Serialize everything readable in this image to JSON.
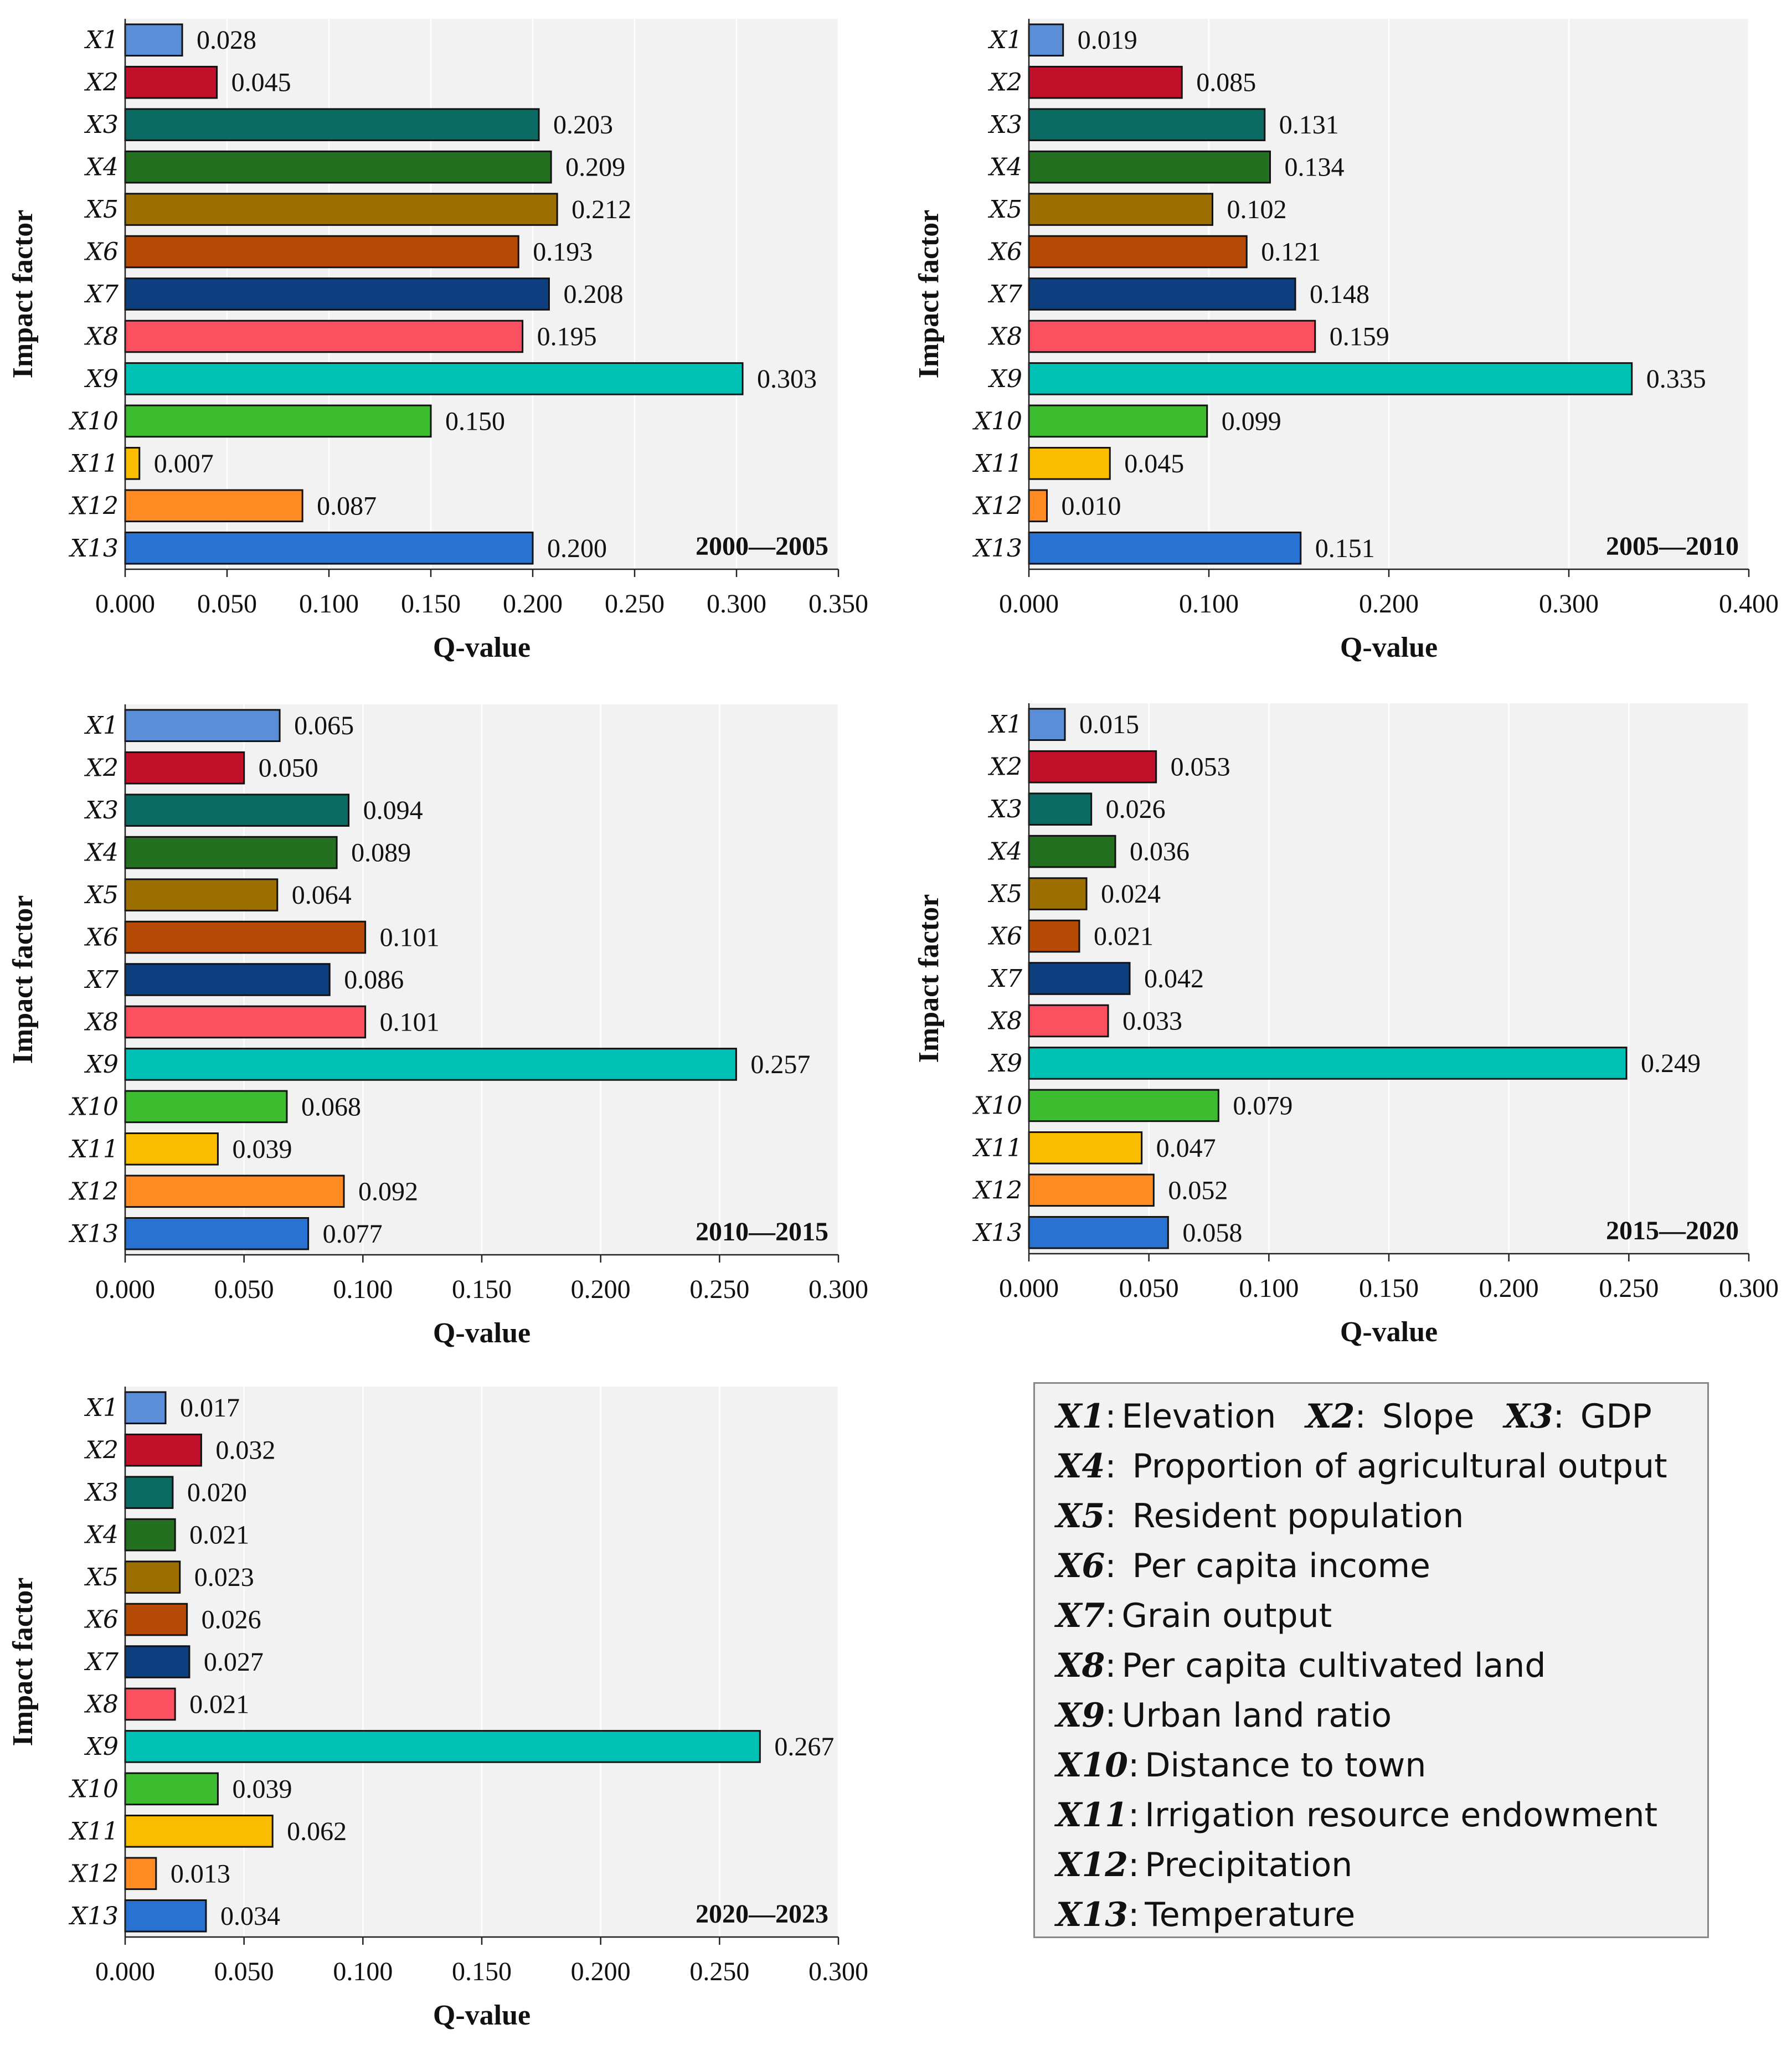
{
  "chart_data": [
    {
      "type": "bar",
      "orientation": "horizontal",
      "title": "2000—2005",
      "xlabel": "Q-value",
      "ylabel": "Impact factor",
      "categories": [
        "X1",
        "X2",
        "X3",
        "X4",
        "X5",
        "X6",
        "X7",
        "X8",
        "X9",
        "X10",
        "X11",
        "X12",
        "X13"
      ],
      "values": [
        0.028,
        0.045,
        0.203,
        0.209,
        0.212,
        0.193,
        0.208,
        0.195,
        0.303,
        0.15,
        0.007,
        0.087,
        0.2
      ],
      "value_labels": [
        "0.028",
        "0.045",
        "0.203",
        "0.209",
        "0.212",
        "0.193",
        "0.208",
        "0.195",
        "0.303",
        "0.150",
        "0.007",
        "0.087",
        "0.200"
      ],
      "xlim": [
        0,
        0.35
      ],
      "xticks": [
        0,
        0.05,
        0.1,
        0.15,
        0.2,
        0.25,
        0.3,
        0.35
      ],
      "xtick_labels": [
        "0.000",
        "0.050",
        "0.100",
        "0.150",
        "0.200",
        "0.250",
        "0.300",
        "0.350"
      ],
      "grid": true
    },
    {
      "type": "bar",
      "orientation": "horizontal",
      "title": "2005—2010",
      "xlabel": "Q-value",
      "ylabel": "Impact factor",
      "categories": [
        "X1",
        "X2",
        "X3",
        "X4",
        "X5",
        "X6",
        "X7",
        "X8",
        "X9",
        "X10",
        "X11",
        "X12",
        "X13"
      ],
      "values": [
        0.019,
        0.085,
        0.131,
        0.134,
        0.102,
        0.121,
        0.148,
        0.159,
        0.335,
        0.099,
        0.045,
        0.01,
        0.151
      ],
      "value_labels": [
        "0.019",
        "0.085",
        "0.131",
        "0.134",
        "0.102",
        "0.121",
        "0.148",
        "0.159",
        "0.335",
        "0.099",
        "0.045",
        "0.010",
        "0.151"
      ],
      "xlim": [
        0,
        0.4
      ],
      "xticks": [
        0,
        0.1,
        0.2,
        0.3,
        0.4
      ],
      "xtick_labels": [
        "0.000",
        "0.100",
        "0.200",
        "0.300",
        "0.400"
      ],
      "grid": true
    },
    {
      "type": "bar",
      "orientation": "horizontal",
      "title": "2010—2015",
      "xlabel": "Q-value",
      "ylabel": "Impact factor",
      "categories": [
        "X1",
        "X2",
        "X3",
        "X4",
        "X5",
        "X6",
        "X7",
        "X8",
        "X9",
        "X10",
        "X11",
        "X12",
        "X13"
      ],
      "values": [
        0.065,
        0.05,
        0.094,
        0.089,
        0.064,
        0.101,
        0.086,
        0.101,
        0.257,
        0.068,
        0.039,
        0.092,
        0.077
      ],
      "value_labels": [
        "0.065",
        "0.050",
        "0.094",
        "0.089",
        "0.064",
        "0.101",
        "0.086",
        "0.101",
        "0.257",
        "0.068",
        "0.039",
        "0.092",
        "0.077"
      ],
      "xlim": [
        0,
        0.3
      ],
      "xticks": [
        0,
        0.05,
        0.1,
        0.15,
        0.2,
        0.25,
        0.3
      ],
      "xtick_labels": [
        "0.000",
        "0.050",
        "0.100",
        "0.150",
        "0.200",
        "0.250",
        "0.300"
      ],
      "grid": true
    },
    {
      "type": "bar",
      "orientation": "horizontal",
      "title": "2015—2020",
      "xlabel": "Q-value",
      "ylabel": "Impact factor",
      "categories": [
        "X1",
        "X2",
        "X3",
        "X4",
        "X5",
        "X6",
        "X7",
        "X8",
        "X9",
        "X10",
        "X11",
        "X12",
        "X13"
      ],
      "values": [
        0.015,
        0.053,
        0.026,
        0.036,
        0.024,
        0.021,
        0.042,
        0.033,
        0.249,
        0.079,
        0.047,
        0.052,
        0.058
      ],
      "value_labels": [
        "0.015",
        "0.053",
        "0.026",
        "0.036",
        "0.024",
        "0.021",
        "0.042",
        "0.033",
        "0.249",
        "0.079",
        "0.047",
        "0.052",
        "0.058"
      ],
      "xlim": [
        0,
        0.3
      ],
      "xticks": [
        0,
        0.05,
        0.1,
        0.15,
        0.2,
        0.25,
        0.3
      ],
      "xtick_labels": [
        "0.000",
        "0.050",
        "0.100",
        "0.150",
        "0.200",
        "0.250",
        "0.300"
      ],
      "grid": true
    },
    {
      "type": "bar",
      "orientation": "horizontal",
      "title": "2020—2023",
      "xlabel": "Q-value",
      "ylabel": "Impact factor",
      "categories": [
        "X1",
        "X2",
        "X3",
        "X4",
        "X5",
        "X6",
        "X7",
        "X8",
        "X9",
        "X10",
        "X11",
        "X12",
        "X13"
      ],
      "values": [
        0.017,
        0.032,
        0.02,
        0.021,
        0.023,
        0.026,
        0.027,
        0.021,
        0.267,
        0.039,
        0.062,
        0.013,
        0.034
      ],
      "value_labels": [
        "0.017",
        "0.032",
        "0.020",
        "0.021",
        "0.023",
        "0.026",
        "0.027",
        "0.021",
        "0.267",
        "0.039",
        "0.062",
        "0.013",
        "0.034"
      ],
      "xlim": [
        0,
        0.3
      ],
      "xticks": [
        0,
        0.05,
        0.1,
        0.15,
        0.2,
        0.25,
        0.3
      ],
      "xtick_labels": [
        "0.000",
        "0.050",
        "0.100",
        "0.150",
        "0.200",
        "0.250",
        "0.300"
      ],
      "grid": true
    }
  ],
  "bar_colors": [
    "#5b8ed6",
    "#c0102a",
    "#0b6b62",
    "#237020",
    "#9c7000",
    "#b44a06",
    "#0d3f80",
    "#fa5060",
    "#00c2b4",
    "#3cbc2e",
    "#fbbd00",
    "#fe8a24",
    "#2a72d2"
  ],
  "legend": {
    "lines": [
      [
        {
          "key": "X1",
          "text": "Elevation"
        },
        {
          "key": "X2",
          "text": " Slope"
        },
        {
          "key": "X3",
          "text": " GDP"
        }
      ],
      [
        {
          "key": "X4",
          "text": " Proportion of agricultural output"
        }
      ],
      [
        {
          "key": "X5",
          "text": " Resident population"
        }
      ],
      [
        {
          "key": "X6",
          "text": " Per capita income"
        }
      ],
      [
        {
          "key": "X7",
          "text": "Grain output"
        }
      ],
      [
        {
          "key": "X8",
          "text": "Per capita cultivated land"
        }
      ],
      [
        {
          "key": "X9",
          "text": "Urban land ratio"
        }
      ],
      [
        {
          "key": "X10",
          "text": "Distance to town"
        }
      ],
      [
        {
          "key": "X11",
          "text": "Irrigation resource endowment"
        }
      ],
      [
        {
          "key": "X12",
          "text": "Precipitation"
        }
      ],
      [
        {
          "key": "X13",
          "text": "Temperature"
        }
      ]
    ]
  }
}
